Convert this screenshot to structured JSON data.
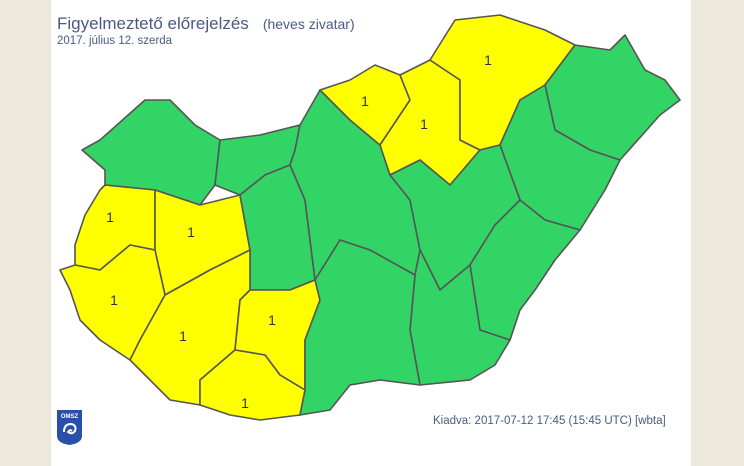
{
  "header": {
    "title": "Figyelmeztető előrejelzés",
    "subtitle": "(heves zivatar)",
    "date": "2017. július 12. szerda"
  },
  "footer": {
    "issued": "Kiadva: 2017-07-12 17:45 (15:45 UTC) [wbta]",
    "logo_text": "OMSZ"
  },
  "colors": {
    "warning_level_1": "#ffff00",
    "no_warning": "#33d466",
    "background": "#ece9dc",
    "border": "#555555"
  },
  "counties": [
    {
      "id": "gyor",
      "level": 0
    },
    {
      "id": "komarom",
      "level": 0
    },
    {
      "id": "vas",
      "level": 1,
      "label": "1"
    },
    {
      "id": "veszprem",
      "level": 1,
      "label": "1"
    },
    {
      "id": "zala",
      "level": 1,
      "label": "1"
    },
    {
      "id": "fejer",
      "level": 0
    },
    {
      "id": "somogy",
      "level": 1,
      "label": "1"
    },
    {
      "id": "tolna",
      "level": 1,
      "label": "1"
    },
    {
      "id": "baranya",
      "level": 1,
      "label": "1"
    },
    {
      "id": "pest",
      "level": 0
    },
    {
      "id": "nograd",
      "level": 1,
      "label": "1"
    },
    {
      "id": "heves",
      "level": 1,
      "label": "1"
    },
    {
      "id": "borsod",
      "level": 1,
      "label": "1"
    },
    {
      "id": "szabolcs",
      "level": 0
    },
    {
      "id": "hajdu",
      "level": 0
    },
    {
      "id": "jasz",
      "level": 0
    },
    {
      "id": "bekes",
      "level": 0
    },
    {
      "id": "csongrad",
      "level": 0
    },
    {
      "id": "bacs",
      "level": 0
    }
  ]
}
